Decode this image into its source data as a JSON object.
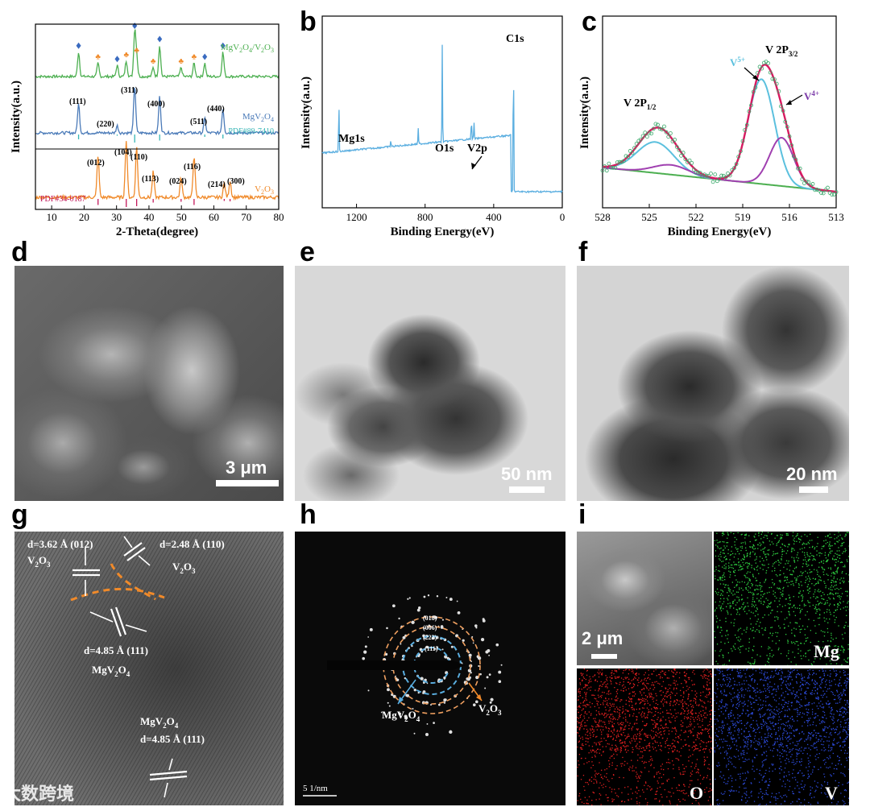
{
  "panels": {
    "a": {
      "letter": ""
    },
    "b": {
      "letter": "b"
    },
    "c": {
      "letter": "c"
    },
    "d": {
      "letter": "d"
    },
    "e": {
      "letter": "e"
    },
    "f": {
      "letter": "f"
    },
    "g": {
      "letter": "g"
    },
    "h": {
      "letter": "h"
    },
    "i": {
      "letter": "i"
    }
  },
  "chart_data": [
    {
      "type": "line",
      "panel": "a",
      "xlabel": "2-Theta(degree)",
      "ylabel": "Intensity(a.u.)",
      "xlim": [
        5,
        80
      ],
      "xticks": [
        10,
        20,
        30,
        40,
        50,
        60,
        70,
        80
      ],
      "series": [
        {
          "name": "MgV2O4/V2O3",
          "color": "#4caf50",
          "peaks": [
            [
              18.3,
              0.55
            ],
            [
              24.3,
              0.3
            ],
            [
              30.2,
              0.25
            ],
            [
              33.0,
              0.35
            ],
            [
              35.6,
              1.0
            ],
            [
              36.2,
              0.45
            ],
            [
              41.3,
              0.2
            ],
            [
              43.3,
              0.7
            ],
            [
              49.9,
              0.2
            ],
            [
              53.9,
              0.3
            ],
            [
              57.2,
              0.3
            ],
            [
              62.8,
              0.55
            ]
          ]
        },
        {
          "name": "MgV2O4",
          "color": "#4a7ab8",
          "peaks": [
            [
              18.3,
              0.6
            ],
            [
              30.2,
              0.15
            ],
            [
              35.6,
              1.0
            ],
            [
              43.3,
              0.75
            ],
            [
              57.2,
              0.3
            ],
            [
              62.8,
              0.5
            ]
          ],
          "reference": "PDF#89-7410",
          "reference_color": "#38b6b6"
        },
        {
          "name": "V2O3",
          "color": "#f08a2a",
          "peaks": [
            [
              24.3,
              0.75
            ],
            [
              33.0,
              1.0
            ],
            [
              36.2,
              0.9
            ],
            [
              41.3,
              0.45
            ],
            [
              49.9,
              0.35
            ],
            [
              53.9,
              0.75
            ],
            [
              63.2,
              0.25
            ],
            [
              65.0,
              0.3
            ]
          ],
          "reference": "PDF#34-0187",
          "reference_color": "#c2185b"
        }
      ],
      "labels": {
        "mgv2o4": [
          "(111)",
          "(220)",
          "(311)",
          "(400)",
          "(511)",
          "(440)"
        ],
        "v2o3": [
          "(012)",
          "(104)",
          "(110)",
          "(113)",
          "(024)",
          "(116)",
          "(214)",
          "(300)"
        ]
      }
    },
    {
      "type": "line",
      "panel": "b",
      "xlabel": "Binding Energy(eV)",
      "ylabel": "Intensity(a.u.)",
      "xlim": [
        1400,
        0
      ],
      "xticks": [
        1200,
        800,
        400,
        0
      ],
      "series": [
        {
          "name": "",
          "color": "#5aaee0"
        }
      ],
      "annotations": [
        "C1s",
        "Mg1s",
        "O1s",
        "V2p"
      ]
    },
    {
      "type": "line",
      "panel": "c",
      "xlabel": "Binding Energy(eV)",
      "ylabel": "Intensity(a.u.)",
      "xlim": [
        528,
        513
      ],
      "xticks": [
        528,
        525,
        522,
        519,
        516,
        513
      ],
      "series": [
        {
          "name": "envelope",
          "color": "#d81b60"
        },
        {
          "name": "V5+",
          "color": "#5bc0de"
        },
        {
          "name": "V4+",
          "color": "#a040b0"
        },
        {
          "name": "background",
          "color": "#4caf50"
        },
        {
          "name": "raw",
          "color": "#3aa86a"
        }
      ],
      "annotations": {
        "v2p12": "V 2P",
        "v2p12_sub": "1/2",
        "v2p32": "V 2P",
        "v2p32_sub": "3/2",
        "v5": "V",
        "v5_sup": "5+",
        "v4": "V",
        "v4_sup": "4+"
      }
    }
  ],
  "images": {
    "d": {
      "scale": "3 μm"
    },
    "e": {
      "scale": "50 nm"
    },
    "f": {
      "scale": "20 nm"
    },
    "g": {
      "ann1": "d=3.62 Å (012)",
      "ann1b": "V",
      "ann1b_sub": "2",
      "ann1b_end": "O",
      "ann1b_sub2": "3",
      "ann2": "d=2.48 Å (110)",
      "ann2b": "V",
      "ann2b_sub": "2",
      "ann2b_end": "O",
      "ann2b_sub2": "3",
      "ann3": "d=4.85 Å (111)",
      "ann3b": "MgV",
      "ann3b_sub": "2",
      "ann3b_end": "O",
      "ann3b_sub2": "4",
      "ann4": "MgV",
      "ann4_sub": "2",
      "ann4_end": "O",
      "ann4_sub2": "4",
      "ann4b": "d=4.85 Å (111)"
    },
    "h": {
      "rings": [
        "(018)",
        "(006)",
        "(222)",
        "(111)"
      ],
      "left": "MgV",
      "left_sub": "2",
      "left_end": "O",
      "left_sub2": "4",
      "right": "V",
      "right_sub": "2",
      "right_end": "O",
      "right_sub2": "3",
      "scale": "5 1/nm"
    },
    "i": {
      "scale": "2 μm",
      "mg": "Mg",
      "o": "O",
      "v": "V"
    }
  },
  "watermark": "大数跨境"
}
